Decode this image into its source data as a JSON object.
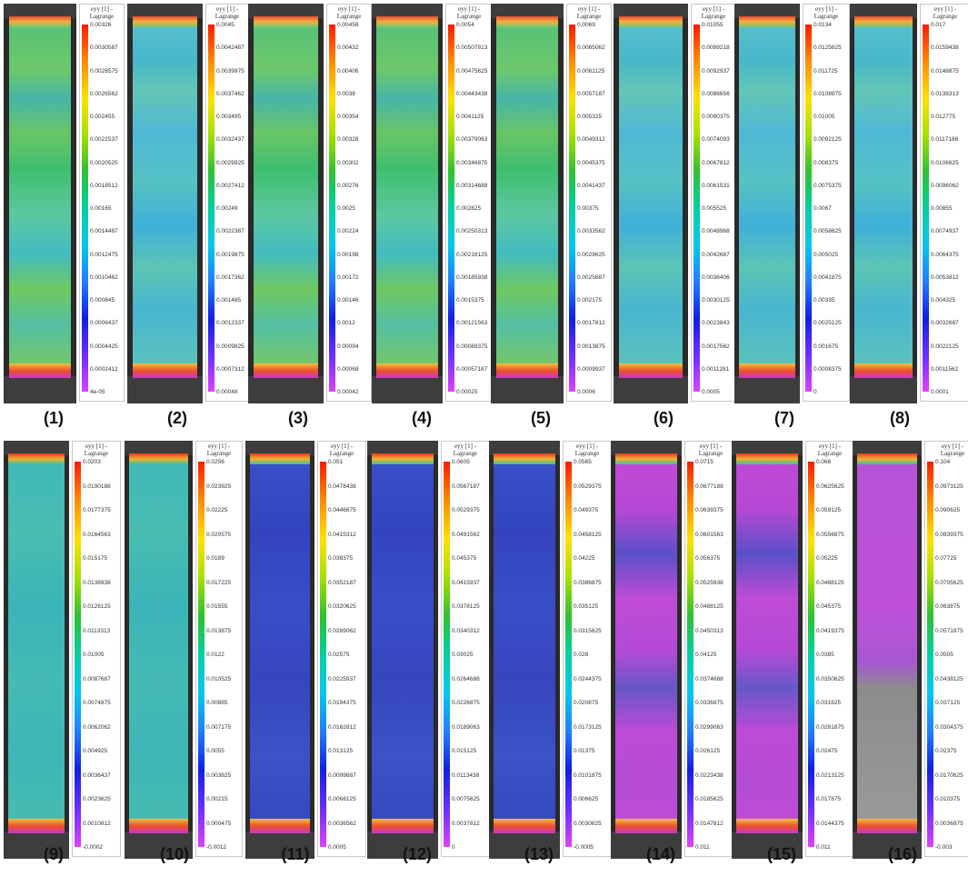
{
  "legend_title": "eyy [1] -",
  "legend_subtitle": "Lagrange",
  "colormap": [
    "#ff1a00",
    "#ff8a00",
    "#ffe000",
    "#a8e000",
    "#30c030",
    "#00d0a0",
    "#00c8f0",
    "#2080ff",
    "#1020e0",
    "#6a30ff",
    "#e040ff"
  ],
  "panels": [
    {
      "caption": "(1)",
      "field": "green",
      "ticks": [
        "0.00326",
        "0.0030587",
        "0.0028575",
        "0.0026562",
        "0.002455",
        "0.0022537",
        "0.0020525",
        "0.0018512",
        "0.00165",
        "0.0014487",
        "0.0012475",
        "0.0010462",
        "0.000845",
        "0.0006437",
        "0.0004425",
        "0.0002412",
        "4e-05"
      ]
    },
    {
      "caption": "(2)",
      "field": "cyan",
      "ticks": [
        "0.0045",
        "0.0042487",
        "0.0039975",
        "0.0037462",
        "0.003495",
        "0.0032437",
        "0.0029925",
        "0.0027412",
        "0.00249",
        "0.0022387",
        "0.0019875",
        "0.0017362",
        "0.001485",
        "0.0012337",
        "0.0009825",
        "0.0007312",
        "0.00048"
      ]
    },
    {
      "caption": "(3)",
      "field": "green",
      "ticks": [
        "0.00458",
        "0.00432",
        "0.00406",
        "0.0038",
        "0.00354",
        "0.00328",
        "0.00302",
        "0.00276",
        "0.0025",
        "0.00224",
        "0.00198",
        "0.00172",
        "0.00146",
        "0.0012",
        "0.00094",
        "0.00068",
        "0.00042"
      ]
    },
    {
      "caption": "(4)",
      "field": "green",
      "ticks": [
        "0.0054",
        "0.00507813",
        "0.00475625",
        "0.00443438",
        "0.0041125",
        "0.00379063",
        "0.00346875",
        "0.00314688",
        "0.002825",
        "0.00250313",
        "0.00218125",
        "0.00185938",
        "0.0015375",
        "0.00121563",
        "0.00089375",
        "0.00057187",
        "0.00025"
      ]
    },
    {
      "caption": "(5)",
      "field": "green",
      "ticks": [
        "0.0069",
        "0.0065062",
        "0.0061125",
        "0.0057187",
        "0.005325",
        "0.0049312",
        "0.0045375",
        "0.0041437",
        "0.00375",
        "0.0033562",
        "0.0029625",
        "0.0025687",
        "0.002175",
        "0.0017812",
        "0.0013875",
        "0.0009937",
        "0.0006"
      ]
    },
    {
      "caption": "(6)",
      "field": "cyan",
      "ticks": [
        "0.01055",
        "0.0099218",
        "0.0092937",
        "0.0086656",
        "0.0080375",
        "0.0074093",
        "0.0067812",
        "0.0061531",
        "0.005525",
        "0.0048968",
        "0.0042687",
        "0.0036406",
        "0.0030125",
        "0.0023843",
        "0.0017562",
        "0.0011281",
        "0.0005"
      ]
    },
    {
      "caption": "(7)",
      "field": "cyan",
      "ticks": [
        "0.0134",
        "0.0125625",
        "0.011725",
        "0.0108875",
        "0.01005",
        "0.0092125",
        "0.008375",
        "0.0075375",
        "0.0067",
        "0.0058625",
        "0.005025",
        "0.0041875",
        "0.00335",
        "0.0025125",
        "0.001675",
        "0.0008375",
        "0"
      ]
    },
    {
      "caption": "(8)",
      "field": "cyan",
      "ticks": [
        "0.017",
        "0.0159438",
        "0.0148875",
        "0.0138313",
        "0.012775",
        "0.0117188",
        "0.0106625",
        "0.0096062",
        "0.00855",
        "0.0074937",
        "0.0064375",
        "0.0053812",
        "0.004325",
        "0.0032687",
        "0.0022125",
        "0.0011562",
        "0.0001"
      ]
    },
    {
      "caption": "(9)",
      "field": "teal",
      "ticks": [
        "0.0203",
        "0.0190188",
        "0.0177375",
        "0.0164563",
        "0.015175",
        "0.0138938",
        "0.0126125",
        "0.0113313",
        "0.01005",
        "0.0087687",
        "0.0074875",
        "0.0062062",
        "0.004925",
        "0.0036437",
        "0.0023625",
        "0.0010812",
        "-0.0002"
      ]
    },
    {
      "caption": "(10)",
      "field": "teal",
      "ticks": [
        "0.0256",
        "0.023925",
        "0.02225",
        "0.020575",
        "0.0189",
        "0.017225",
        "0.01555",
        "0.013875",
        "0.0122",
        "0.010525",
        "0.00885",
        "0.007175",
        "0.0055",
        "0.003825",
        "0.00215",
        "0.000475",
        "-0.0012"
      ]
    },
    {
      "caption": "(11)",
      "field": "blue",
      "ticks": [
        "0.051",
        "0.0478438",
        "0.0446875",
        "0.0415312",
        "0.038375",
        "0.0352187",
        "0.0320625",
        "0.0289062",
        "0.02575",
        "0.0225937",
        "0.0194375",
        "0.0162812",
        "0.013125",
        "0.0099687",
        "0.0068125",
        "0.0036562",
        "0.0005"
      ]
    },
    {
      "caption": "(12)",
      "field": "blue",
      "ticks": [
        "0.0605",
        "0.0567187",
        "0.0529375",
        "0.0491562",
        "0.045375",
        "0.0415937",
        "0.0378125",
        "0.0340312",
        "0.03025",
        "0.0264688",
        "0.0226875",
        "0.0189063",
        "0.015125",
        "0.0113438",
        "0.0075625",
        "0.0037812",
        "0"
      ]
    },
    {
      "caption": "(13)",
      "field": "blue",
      "ticks": [
        "0.0565",
        "0.0529375",
        "0.049375",
        "0.0458125",
        "0.04225",
        "0.0386875",
        "0.035125",
        "0.0315625",
        "0.028",
        "0.0244375",
        "0.020875",
        "0.0173125",
        "0.01375",
        "0.0101875",
        "0.006625",
        "0.0030625",
        "-0.0005"
      ]
    },
    {
      "caption": "(14)",
      "field": "magenta",
      "ticks": [
        "0.0715",
        "0.0677188",
        "0.0639375",
        "0.0601563",
        "0.056375",
        "0.0525938",
        "0.0488125",
        "0.0450313",
        "0.04125",
        "0.0374688",
        "0.0336875",
        "0.0299063",
        "0.026125",
        "0.0223438",
        "0.0185625",
        "0.0147812",
        "0.011"
      ]
    },
    {
      "caption": "(15)",
      "field": "magenta",
      "ticks": [
        "0.066",
        "0.0625625",
        "0.059125",
        "0.0556875",
        "0.05225",
        "0.0488125",
        "0.045375",
        "0.0419375",
        "0.0385",
        "0.0350625",
        "0.031625",
        "0.0281875",
        "0.02475",
        "0.0213125",
        "0.017875",
        "0.0144375",
        "0.011"
      ]
    },
    {
      "caption": "(16)",
      "field": "fractured",
      "ticks": [
        "0.104",
        "0.0973125",
        "0.090625",
        "0.0839375",
        "0.07725",
        "0.0705625",
        "0.063875",
        "0.0571875",
        "0.0505",
        "0.0438125",
        "0.037125",
        "0.0304375",
        "0.02375",
        "0.0170625",
        "0.010375",
        "0.0036875",
        "-0.003"
      ]
    }
  ]
}
